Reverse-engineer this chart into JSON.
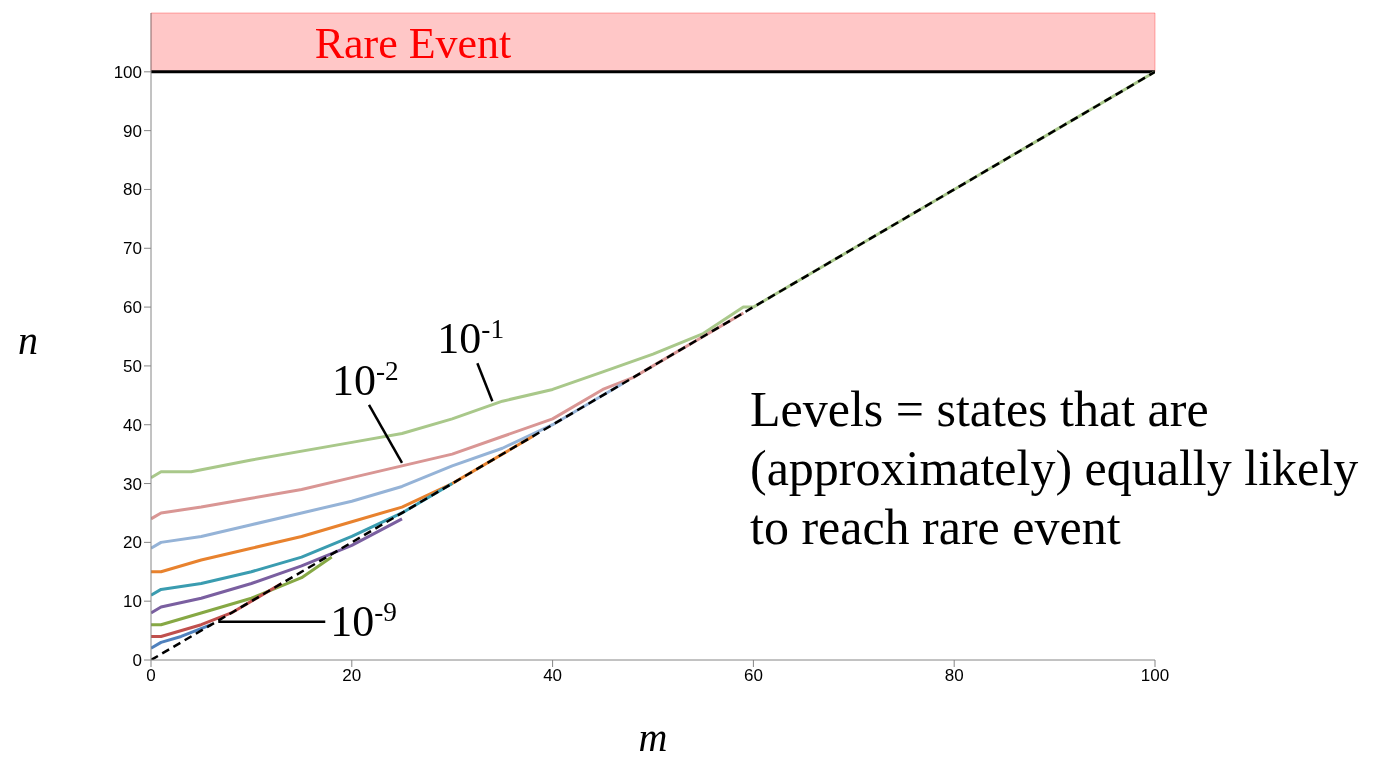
{
  "chart_data": {
    "type": "line",
    "xlabel": "m",
    "ylabel": "n",
    "xlim": [
      0,
      100
    ],
    "xticks": [
      0,
      20,
      40,
      60,
      80,
      100
    ],
    "ylim": [
      0,
      110
    ],
    "yticks": [
      0,
      10,
      20,
      30,
      40,
      50,
      60,
      70,
      80,
      90,
      100
    ],
    "marker": "none",
    "line_style": "solid",
    "series": [
      {
        "color": "#a9c88a",
        "x": [
          0,
          1,
          4,
          10,
          20,
          25,
          30,
          35,
          40,
          45,
          50,
          55,
          59,
          60,
          70,
          80,
          90,
          100
        ],
        "values": [
          31,
          32,
          32,
          34,
          37,
          38.5,
          41,
          44,
          46,
          49,
          52,
          55.5,
          60,
          60,
          70,
          80,
          90,
          100
        ]
      },
      {
        "color": "#d99694",
        "x": [
          0,
          1,
          5,
          10,
          15,
          20,
          25,
          30,
          35,
          40,
          45,
          48,
          50,
          59
        ],
        "values": [
          24,
          25,
          26,
          27.5,
          29,
          31,
          33,
          35,
          38,
          41,
          46,
          48,
          50,
          59
        ]
      },
      {
        "color": "#95b3d7",
        "x": [
          0,
          1,
          5,
          10,
          15,
          20,
          25,
          30,
          35,
          40,
          45,
          47
        ],
        "values": [
          19,
          20,
          21,
          23,
          25,
          27,
          29.5,
          33,
          36,
          40,
          45,
          47
        ]
      },
      {
        "color": "#e8822e",
        "x": [
          0,
          1,
          5,
          10,
          15,
          20,
          25,
          30,
          35,
          38
        ],
        "values": [
          15,
          15,
          17,
          19,
          21,
          23.5,
          26,
          30,
          35,
          38
        ]
      },
      {
        "color": "#3a9cb0",
        "x": [
          0,
          1,
          5,
          10,
          15,
          20,
          25,
          30
        ],
        "values": [
          11,
          12,
          13,
          15,
          17.5,
          21,
          25,
          30
        ]
      },
      {
        "color": "#7a5fa0",
        "x": [
          0,
          1,
          5,
          10,
          15,
          20,
          25
        ],
        "values": [
          8,
          9,
          10.5,
          13,
          16,
          19.5,
          24
        ]
      },
      {
        "color": "#86a844",
        "x": [
          0,
          1,
          5,
          10,
          15,
          18
        ],
        "values": [
          6,
          6,
          8,
          10.5,
          14,
          17.5
        ]
      },
      {
        "color": "#c0504d",
        "x": [
          0,
          1,
          5,
          8,
          13
        ],
        "values": [
          4,
          4,
          6,
          8,
          13
        ]
      },
      {
        "color": "#4f81bd",
        "x": [
          0,
          1,
          3,
          6
        ],
        "values": [
          2,
          3,
          4,
          6
        ]
      },
      {
        "color": "#000000",
        "line_style": "dashed",
        "x": [
          0,
          100
        ],
        "values": [
          0,
          100
        ]
      }
    ],
    "bands": [
      {
        "axis": "y",
        "from": 100,
        "to": 110,
        "label": "Rare Event",
        "color": "#ff0000"
      }
    ],
    "ref_lines": [
      {
        "axis": "y",
        "value": 100,
        "color": "#000000"
      }
    ],
    "annotations": [
      {
        "text": "10$^{-1}$",
        "x": 34,
        "y": 44
      },
      {
        "text": "10$^{-2}$",
        "x": 25,
        "y": 33.5
      },
      {
        "text": "10$^{-9}$",
        "x": 6.7,
        "y": 6.5
      },
      "Levels = states that are (approximately) equally likely to reach rare event"
    ]
  }
}
